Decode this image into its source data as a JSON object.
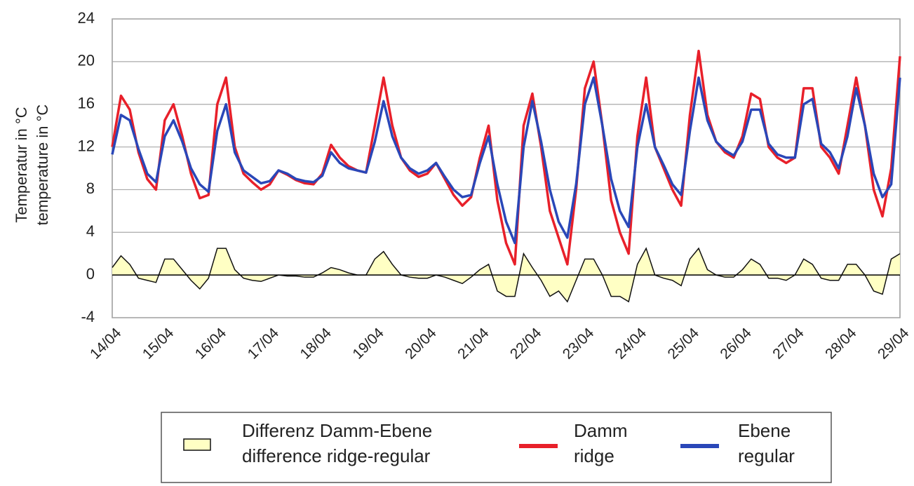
{
  "chart_data": {
    "type": "line",
    "ylabel": [
      "Temperatur in °C",
      "temperature in °C"
    ],
    "categories": [
      "14/04",
      null,
      null,
      null,
      null,
      null,
      "15/04",
      null,
      null,
      null,
      null,
      null,
      "16/04",
      null,
      null,
      null,
      null,
      null,
      "17/04",
      null,
      null,
      null,
      null,
      null,
      "18/04",
      null,
      null,
      null,
      null,
      null,
      "19/04",
      null,
      null,
      null,
      null,
      null,
      "20/04",
      null,
      null,
      null,
      null,
      null,
      "21/04",
      null,
      null,
      null,
      null,
      null,
      "22/04",
      null,
      null,
      null,
      null,
      null,
      "23/04",
      null,
      null,
      null,
      null,
      null,
      "24/04",
      null,
      null,
      null,
      null,
      null,
      "25/04",
      null,
      null,
      null,
      null,
      null,
      "26/04",
      null,
      null,
      null,
      null,
      null,
      "27/04",
      null,
      null,
      null,
      null,
      null,
      "28/04",
      null,
      null,
      null,
      null,
      null,
      "29/04"
    ],
    "series": [
      {
        "name": [
          "Differenz Damm-Ebene",
          "difference ridge-regular"
        ],
        "color": "#ffffc4",
        "area": true,
        "values": [
          0.7,
          1.8,
          1,
          -0.3,
          -0.5,
          -0.7,
          1.5,
          1.5,
          0.5,
          -0.5,
          -1.3,
          -0.3,
          2.5,
          2.5,
          0.5,
          -0.3,
          -0.5,
          -0.6,
          -0.3,
          0,
          -0.1,
          -0.1,
          -0.2,
          -0.2,
          0.2,
          0.7,
          0.5,
          0.2,
          0,
          0,
          1.5,
          2.2,
          1,
          0,
          -0.2,
          -0.3,
          -0.3,
          0,
          -0.2,
          -0.5,
          -0.8,
          -0.2,
          0.5,
          1,
          -1.5,
          -2,
          -2,
          2,
          0.7,
          -0.5,
          -2,
          -1.5,
          -2.5,
          -0.5,
          1.5,
          1.5,
          0,
          -2,
          -2,
          -2.5,
          1,
          2.5,
          0,
          -0.3,
          -0.5,
          -1,
          1.5,
          2.5,
          0.5,
          0,
          -0.2,
          -0.2,
          0.5,
          1.5,
          1,
          -0.3,
          -0.3,
          -0.5,
          0,
          1.5,
          1,
          -0.3,
          -0.5,
          -0.5,
          1,
          1,
          0,
          -1.5,
          -1.8,
          1.5,
          2
        ]
      },
      {
        "name": [
          "Damm",
          "ridge"
        ],
        "color": "#e8202a",
        "values": [
          12,
          16.8,
          15.5,
          11.5,
          9,
          8,
          14.5,
          16,
          13,
          9.5,
          7.2,
          7.5,
          16,
          18.5,
          12,
          9.5,
          8.7,
          8,
          8.5,
          9.8,
          9.4,
          8.9,
          8.6,
          8.5,
          9.5,
          12.2,
          11,
          10.2,
          9.8,
          9.6,
          14,
          18.5,
          14,
          11,
          9.8,
          9.2,
          9.5,
          10.5,
          9,
          7.5,
          6.5,
          7.3,
          11,
          14,
          7,
          3,
          1,
          14,
          17,
          12,
          6,
          3.5,
          1,
          8,
          17.5,
          20,
          14,
          7,
          4,
          2,
          13,
          18.5,
          12,
          10,
          8,
          6.5,
          15,
          21,
          15,
          12.5,
          11.5,
          11,
          13,
          17,
          16.5,
          12,
          11,
          10.5,
          11,
          17.5,
          17.5,
          12,
          11,
          9.5,
          14,
          18.5,
          14,
          8,
          5.5,
          10,
          20.5
        ]
      },
      {
        "name": [
          "Ebene",
          "regular"
        ],
        "color": "#2a47b8",
        "values": [
          11.3,
          15,
          14.5,
          11.8,
          9.5,
          8.7,
          13,
          14.5,
          12.5,
          10,
          8.5,
          7.8,
          13.5,
          16,
          11.5,
          9.8,
          9.2,
          8.6,
          8.8,
          9.8,
          9.5,
          9,
          8.8,
          8.7,
          9.3,
          11.5,
          10.5,
          10,
          9.8,
          9.6,
          12.5,
          16.3,
          13,
          11,
          10,
          9.5,
          9.8,
          10.5,
          9.2,
          8,
          7.3,
          7.5,
          10.5,
          13,
          8.5,
          5,
          3,
          12,
          16.3,
          12.5,
          8,
          5,
          3.5,
          8.5,
          16,
          18.5,
          14,
          9,
          6,
          4.5,
          12,
          16,
          12,
          10.3,
          8.5,
          7.5,
          13.5,
          18.5,
          14.5,
          12.5,
          11.7,
          11.2,
          12.5,
          15.5,
          15.5,
          12.3,
          11.3,
          11,
          11,
          16,
          16.5,
          12.3,
          11.5,
          10,
          13,
          17.5,
          14,
          9.5,
          7.3,
          8.5,
          18.5
        ]
      }
    ],
    "ylim": [
      -4,
      24
    ],
    "yticks": [
      -4,
      0,
      4,
      8,
      12,
      16,
      20,
      24
    ],
    "grid": true
  }
}
